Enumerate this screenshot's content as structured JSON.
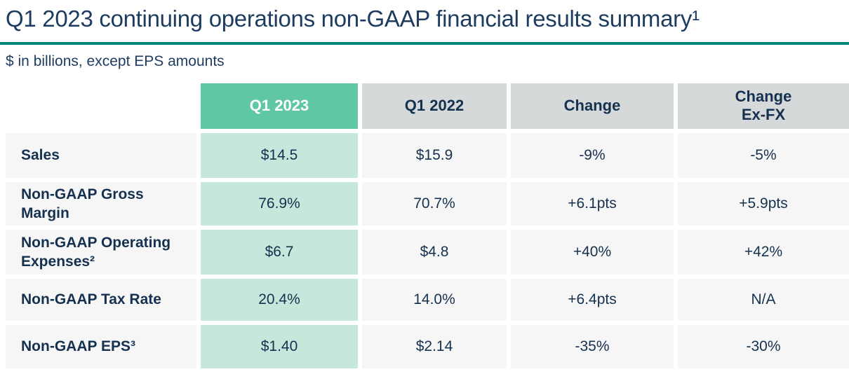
{
  "page": {
    "title": "Q1 2023 continuing operations non-GAAP financial results summary¹",
    "subtitle": "$ in billions, except EPS amounts"
  },
  "colors": {
    "accent_teal": "#00857C",
    "highlight_column_header": "#5FC7A1",
    "highlight_column_cell": "#C6E8DC",
    "header_gray": "#D6D9DA",
    "cell_gray": "#F6F6F6",
    "text_navy": "#15314F"
  },
  "table": {
    "columns": [
      "",
      "Q1 2023",
      "Q1 2022",
      "Change",
      "Change\nEx-FX"
    ],
    "rows": [
      {
        "label": "Sales",
        "values": [
          "$14.5",
          "$15.9",
          "-9%",
          "-5%"
        ]
      },
      {
        "label": "Non-GAAP Gross Margin",
        "values": [
          "76.9%",
          "70.7%",
          "+6.1pts",
          "+5.9pts"
        ]
      },
      {
        "label": "Non-GAAP Operating Expenses²",
        "values": [
          "$6.7",
          "$4.8",
          "+40%",
          "+42%"
        ]
      },
      {
        "label": "Non-GAAP Tax Rate",
        "values": [
          "20.4%",
          "14.0%",
          "+6.4pts",
          "N/A"
        ]
      },
      {
        "label": "Non-GAAP EPS³",
        "values": [
          "$1.40",
          "$2.14",
          "-35%",
          "-30%"
        ]
      }
    ]
  }
}
